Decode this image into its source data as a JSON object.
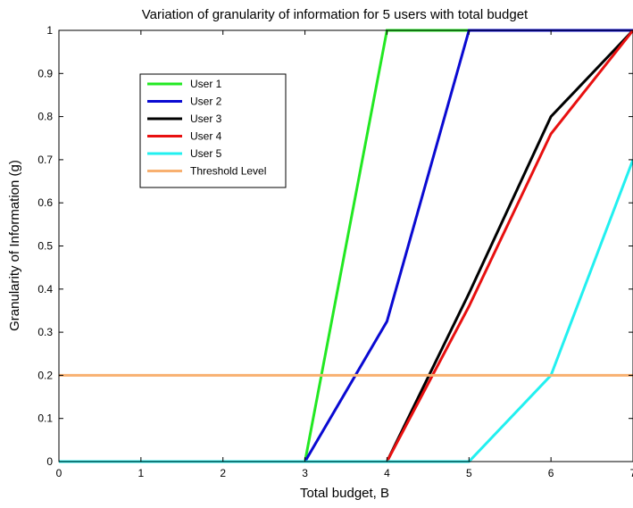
{
  "chart_data": {
    "type": "line",
    "title": "Variation of granularity of information for 5 users with total budget",
    "xlabel": "Total budget, B",
    "ylabel": "Granularity of Information (g)",
    "xlim": [
      0,
      7
    ],
    "ylim": [
      0,
      1
    ],
    "xticks": [
      "0",
      "1",
      "2",
      "3",
      "4",
      "5",
      "6",
      "7"
    ],
    "yticks": [
      "0",
      "0.1",
      "0.2",
      "0.3",
      "0.4",
      "0.5",
      "0.6",
      "0.7",
      "0.8",
      "0.9",
      "1"
    ],
    "grid": false,
    "legend_position": "top-left",
    "series": [
      {
        "name": "User 1",
        "color": "#22e822",
        "points": [
          [
            0,
            0
          ],
          [
            3,
            0
          ],
          [
            4,
            1
          ],
          [
            7,
            1
          ]
        ]
      },
      {
        "name": "User 2",
        "color": "#0a0ad2",
        "points": [
          [
            0,
            0
          ],
          [
            3,
            0
          ],
          [
            4,
            0.325
          ],
          [
            5,
            1
          ],
          [
            7,
            1
          ]
        ]
      },
      {
        "name": "User 3",
        "color": "#000000",
        "points": [
          [
            0,
            0
          ],
          [
            4,
            0
          ],
          [
            5,
            0.39
          ],
          [
            6,
            0.8
          ],
          [
            7,
            1
          ]
        ]
      },
      {
        "name": "User 4",
        "color": "#e81010",
        "points": [
          [
            0,
            0
          ],
          [
            4,
            0
          ],
          [
            5,
            0.36
          ],
          [
            6,
            0.76
          ],
          [
            7,
            1
          ]
        ]
      },
      {
        "name": "User 5",
        "color": "#22f0f0",
        "points": [
          [
            0,
            0
          ],
          [
            5,
            0
          ],
          [
            6,
            0.2
          ],
          [
            7,
            0.7
          ]
        ]
      },
      {
        "name": "Threshold Level",
        "color": "#f8b070",
        "points": [
          [
            0,
            0.2
          ],
          [
            7,
            0.2
          ]
        ]
      }
    ]
  }
}
